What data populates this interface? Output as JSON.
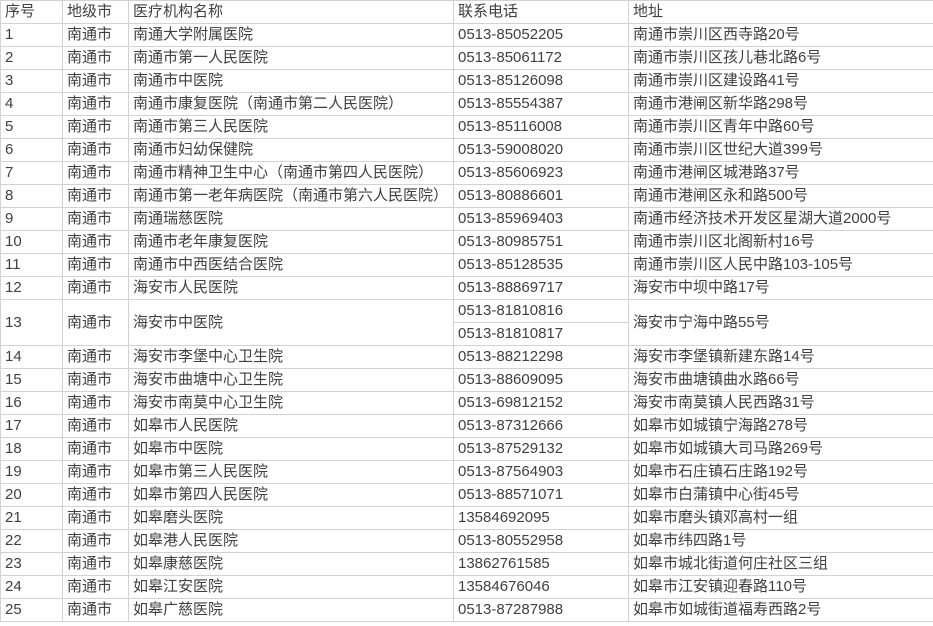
{
  "colors": {
    "grid_line": "#d2d2d2",
    "text": "#404040",
    "background": "#ffffff"
  },
  "table": {
    "columns": [
      {
        "key": "no",
        "label": "序号"
      },
      {
        "key": "city",
        "label": "地级市"
      },
      {
        "key": "name",
        "label": "医疗机构名称"
      },
      {
        "key": "phone",
        "label": "联系电话"
      },
      {
        "key": "address",
        "label": "地址"
      }
    ],
    "rows": [
      {
        "no": "1",
        "city": "南通市",
        "name": "南通大学附属医院",
        "phones": [
          "0513-85052205"
        ],
        "address": "南通市崇川区西寺路20号"
      },
      {
        "no": "2",
        "city": "南通市",
        "name": "南通市第一人民医院",
        "phones": [
          "0513-85061172"
        ],
        "address": "南通市崇川区孩儿巷北路6号"
      },
      {
        "no": "3",
        "city": "南通市",
        "name": "南通市中医院",
        "phones": [
          "0513-85126098"
        ],
        "address": "南通市崇川区建设路41号"
      },
      {
        "no": "4",
        "city": "南通市",
        "name": "南通市康复医院（南通市第二人民医院）",
        "phones": [
          "0513-85554387"
        ],
        "address": "南通市港闸区新华路298号"
      },
      {
        "no": "5",
        "city": "南通市",
        "name": "南通市第三人民医院",
        "phones": [
          "0513-85116008"
        ],
        "address": "南通市崇川区青年中路60号"
      },
      {
        "no": "6",
        "city": "南通市",
        "name": "南通市妇幼保健院",
        "phones": [
          "0513-59008020"
        ],
        "address": "南通市崇川区世纪大道399号"
      },
      {
        "no": "7",
        "city": "南通市",
        "name": "南通市精神卫生中心（南通市第四人民医院）",
        "phones": [
          "0513-85606923"
        ],
        "address": "南通市港闸区城港路37号"
      },
      {
        "no": "8",
        "city": "南通市",
        "name": "南通市第一老年病医院（南通市第六人民医院）",
        "phones": [
          "0513-80886601"
        ],
        "address": "南通市港闸区永和路500号"
      },
      {
        "no": "9",
        "city": "南通市",
        "name": "南通瑞慈医院",
        "phones": [
          "0513-85969403"
        ],
        "address": "南通市经济技术开发区星湖大道2000号"
      },
      {
        "no": "10",
        "city": "南通市",
        "name": "南通市老年康复医院",
        "phones": [
          "0513-80985751"
        ],
        "address": "南通市崇川区北阁新村16号"
      },
      {
        "no": "11",
        "city": "南通市",
        "name": "南通市中西医结合医院",
        "phones": [
          "0513-85128535"
        ],
        "address": "南通市崇川区人民中路103-105号"
      },
      {
        "no": "12",
        "city": "南通市",
        "name": "海安市人民医院",
        "phones": [
          "0513-88869717"
        ],
        "address": "海安市中坝中路17号"
      },
      {
        "no": "13",
        "city": "南通市",
        "name": "海安市中医院",
        "phones": [
          "0513-81810816",
          "0513-81810817"
        ],
        "address": "海安市宁海中路55号"
      },
      {
        "no": "14",
        "city": "南通市",
        "name": "海安市李堡中心卫生院",
        "phones": [
          "0513-88212298"
        ],
        "address": "海安市李堡镇新建东路14号"
      },
      {
        "no": "15",
        "city": "南通市",
        "name": "海安市曲塘中心卫生院",
        "phones": [
          "0513-88609095"
        ],
        "address": "海安市曲塘镇曲水路66号"
      },
      {
        "no": "16",
        "city": "南通市",
        "name": "海安市南莫中心卫生院",
        "phones": [
          "0513-69812152"
        ],
        "address": "海安市南莫镇人民西路31号"
      },
      {
        "no": "17",
        "city": "南通市",
        "name": "如皋市人民医院",
        "phones": [
          "0513-87312666"
        ],
        "address": "如皋市如城镇宁海路278号"
      },
      {
        "no": "18",
        "city": "南通市",
        "name": "如皋市中医院",
        "phones": [
          "0513-87529132"
        ],
        "address": "如皋市如城镇大司马路269号"
      },
      {
        "no": "19",
        "city": "南通市",
        "name": "如皋市第三人民医院",
        "phones": [
          "0513-87564903"
        ],
        "address": "如皋市石庄镇石庄路192号"
      },
      {
        "no": "20",
        "city": "南通市",
        "name": "如皋市第四人民医院",
        "phones": [
          "0513-88571071"
        ],
        "address": "如皋市白蒲镇中心街45号"
      },
      {
        "no": "21",
        "city": "南通市",
        "name": "如皋磨头医院",
        "phones": [
          "13584692095"
        ],
        "address": "如皋市磨头镇邓高村一组"
      },
      {
        "no": "22",
        "city": "南通市",
        "name": "如皋港人民医院",
        "phones": [
          "0513-80552958"
        ],
        "address": "如皋市纬四路1号"
      },
      {
        "no": "23",
        "city": "南通市",
        "name": "如皋康慈医院",
        "phones": [
          "13862761585"
        ],
        "address": "如皋市城北街道何庄社区三组"
      },
      {
        "no": "24",
        "city": "南通市",
        "name": "如皋江安医院",
        "phones": [
          "13584676046"
        ],
        "address": "如皋市江安镇迎春路110号"
      },
      {
        "no": "25",
        "city": "南通市",
        "name": "如皋广慈医院",
        "phones": [
          "0513-87287988"
        ],
        "address": "如皋市如城街道福寿西路2号"
      }
    ]
  }
}
